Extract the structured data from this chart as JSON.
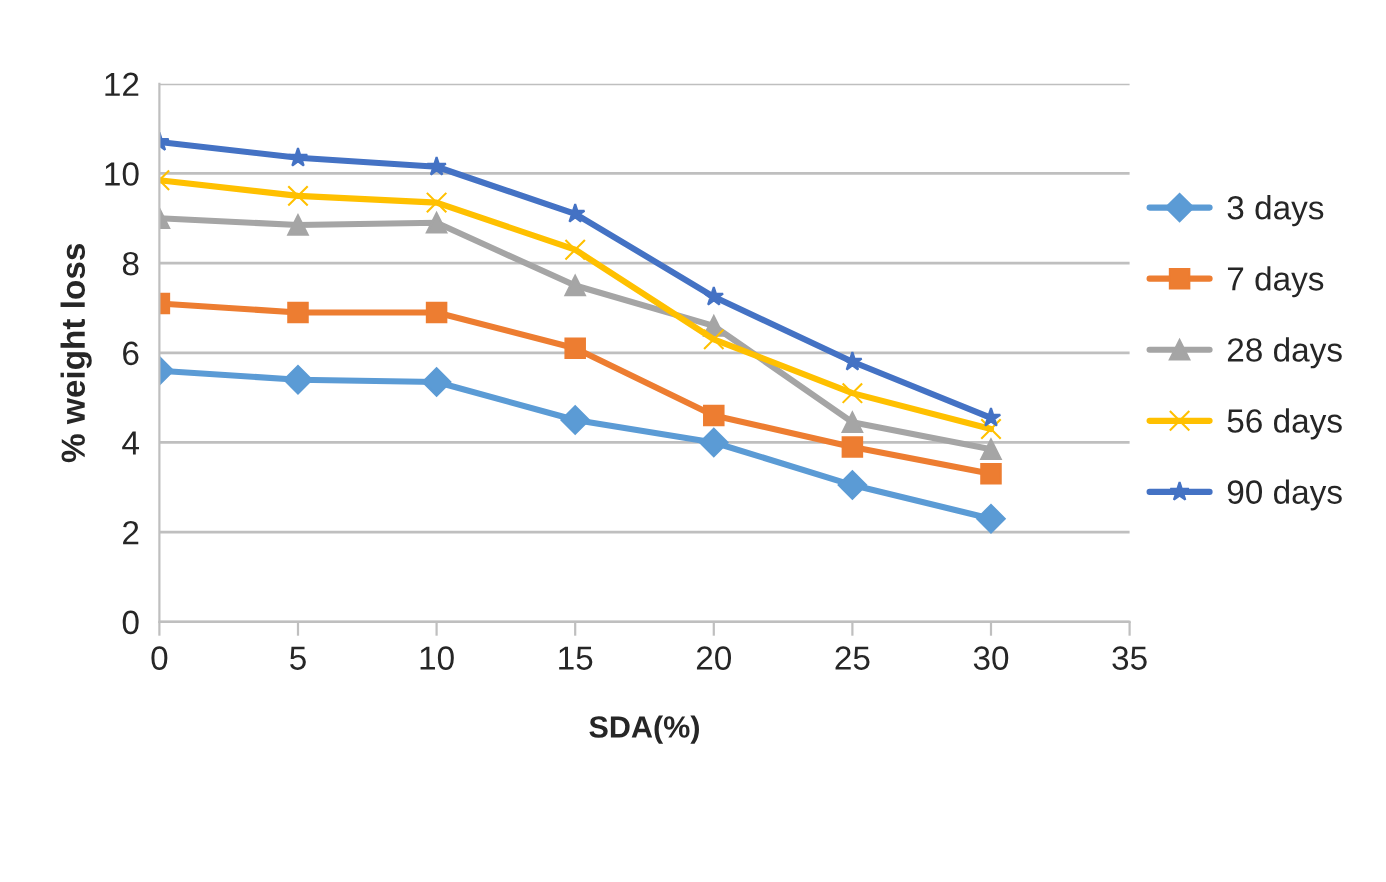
{
  "chart_data": {
    "type": "line",
    "xlabel": "SDA(%)",
    "ylabel": "% weight loss",
    "x": [
      0,
      5,
      10,
      15,
      20,
      25,
      30
    ],
    "series": [
      {
        "name": "3 days",
        "color": "#5b9bd5",
        "marker": "diamond",
        "values": [
          5.6,
          5.4,
          5.35,
          4.5,
          4.0,
          3.05,
          2.3
        ]
      },
      {
        "name": "7 days",
        "color": "#ed7d31",
        "marker": "square",
        "values": [
          7.1,
          6.9,
          6.9,
          6.1,
          4.6,
          3.9,
          3.3
        ]
      },
      {
        "name": "28 days",
        "color": "#a5a5a5",
        "marker": "triangle",
        "values": [
          9.0,
          8.85,
          8.9,
          7.5,
          6.6,
          4.45,
          3.85
        ]
      },
      {
        "name": "56 days",
        "color": "#ffc000",
        "marker": "cross",
        "values": [
          9.85,
          9.5,
          9.35,
          8.3,
          6.3,
          5.1,
          4.3
        ]
      },
      {
        "name": "90 days",
        "color": "#4472c4",
        "marker": "star",
        "values": [
          10.7,
          10.35,
          10.15,
          9.1,
          7.25,
          5.8,
          4.55
        ]
      }
    ],
    "xlim": [
      0,
      35
    ],
    "xticks": [
      0,
      5,
      10,
      15,
      20,
      25,
      30,
      35
    ],
    "ylim": [
      0,
      12
    ],
    "yticks": [
      0,
      2,
      4,
      6,
      8,
      10,
      12
    ],
    "grid": "y",
    "legend": "right"
  }
}
